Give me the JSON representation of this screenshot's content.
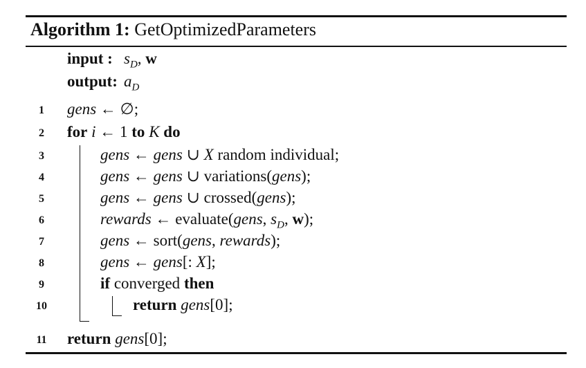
{
  "algorithm": {
    "label": "Algorithm 1:",
    "name": "GetOptimizedParameters"
  },
  "io": {
    "input_label": "input :",
    "input_value": "s_D, w",
    "output_label": "output:",
    "output_value": "a_D"
  },
  "lines": [
    {
      "num": "1",
      "text": "gens ← ∅;"
    },
    {
      "num": "2",
      "text": "for i ← 1 to K do"
    },
    {
      "num": "3",
      "text": "gens ← gens ∪ X random individual;"
    },
    {
      "num": "4",
      "text": "gens ← gens ∪ variations(gens);"
    },
    {
      "num": "5",
      "text": "gens ← gens ∪ crossed(gens);"
    },
    {
      "num": "6",
      "text": "rewards ← evaluate(gens, s_D, w);"
    },
    {
      "num": "7",
      "text": "gens ← sort(gens, rewards);"
    },
    {
      "num": "8",
      "text": "gens ← gens[: X];"
    },
    {
      "num": "9",
      "text": "if converged then"
    },
    {
      "num": "10",
      "text": "return gens[0];"
    },
    {
      "num": "11",
      "text": "return gens[0];"
    }
  ]
}
